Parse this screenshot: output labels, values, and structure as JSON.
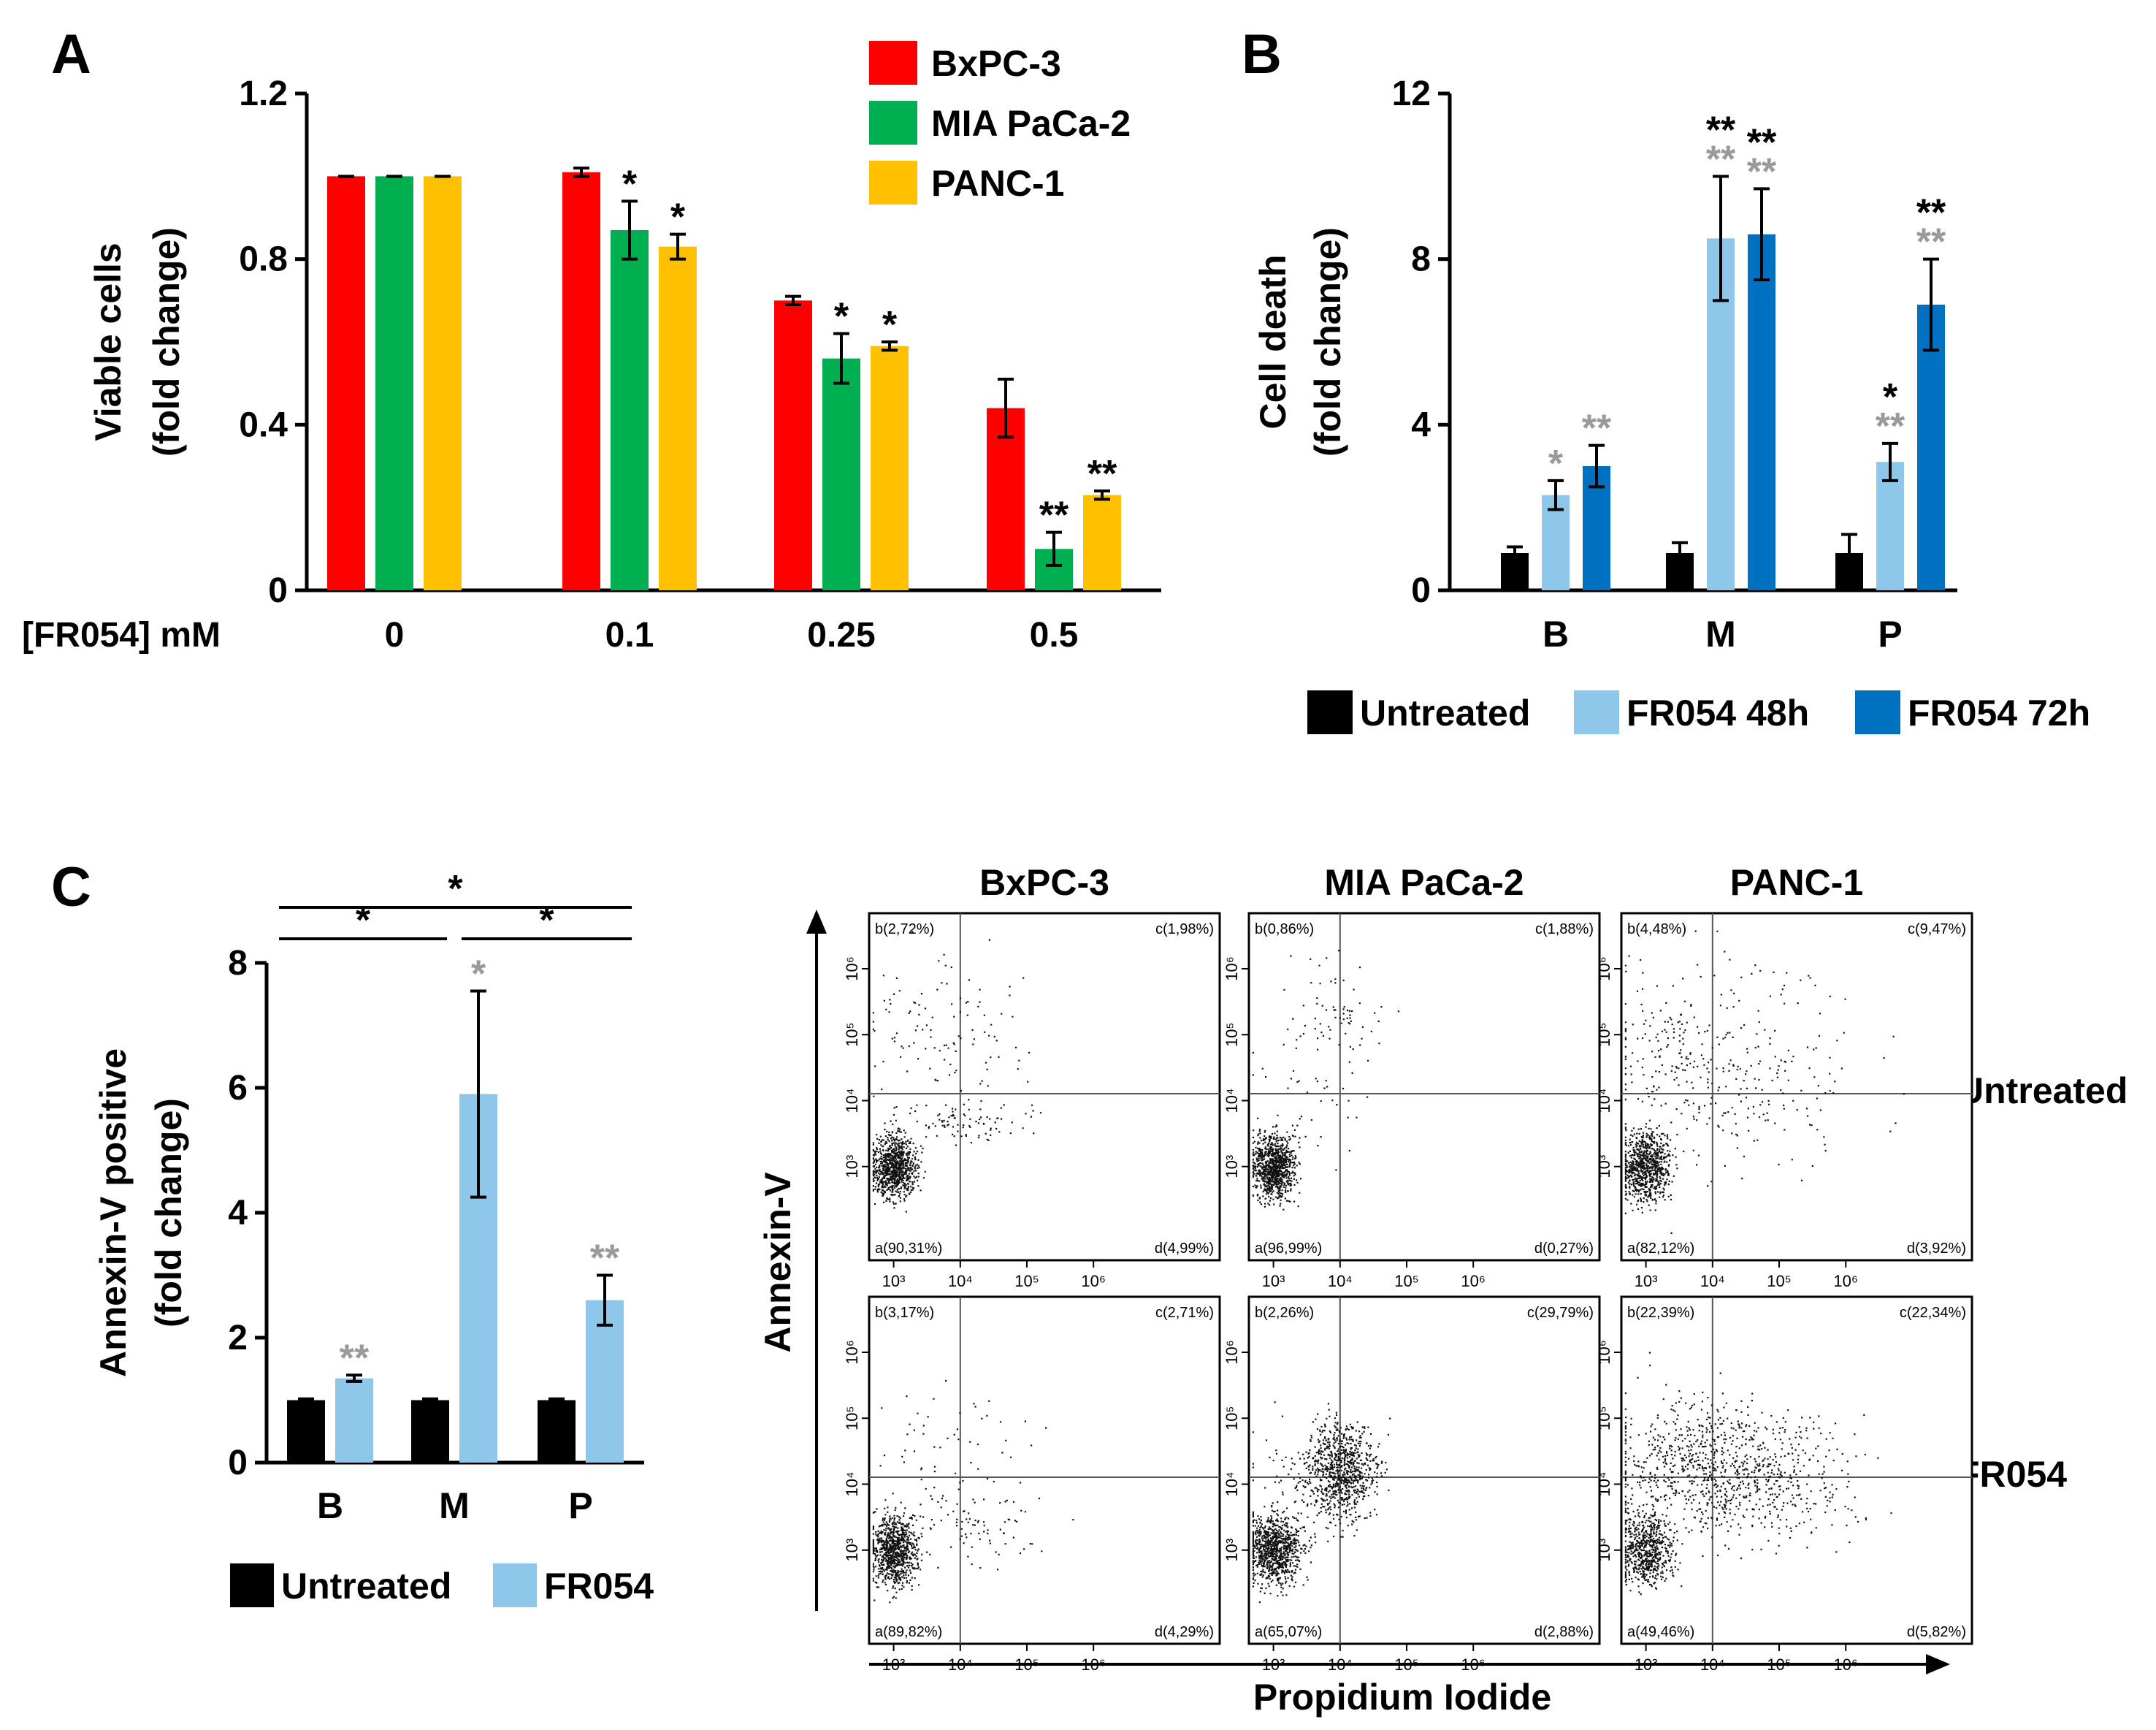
{
  "panels": {
    "A": {
      "label": "A"
    },
    "B": {
      "label": "B"
    },
    "C": {
      "label": "C"
    }
  },
  "chart_data": [
    {
      "id": "A",
      "type": "bar",
      "xlabel": "[FR054] mM",
      "ylabel_line1": "Viable cells",
      "ylabel_line2": "(fold change)",
      "ylim": [
        0,
        1.2
      ],
      "yticks": [
        "0",
        "0.4",
        "0.8",
        "1.2"
      ],
      "categories": [
        "0",
        "0.1",
        "0.25",
        "0.5"
      ],
      "legend_position": "top-right",
      "series": [
        {
          "name": "BxPC-3",
          "color": "#ff0000",
          "values": [
            1.0,
            1.01,
            0.7,
            0.44
          ],
          "errors": [
            0.0,
            0.01,
            0.01,
            0.07
          ],
          "stars": [
            "",
            "",
            "",
            ""
          ]
        },
        {
          "name": "MIA PaCa-2",
          "color": "#00b050",
          "values": [
            1.0,
            0.87,
            0.56,
            0.1
          ],
          "errors": [
            0.0,
            0.07,
            0.06,
            0.04
          ],
          "stars": [
            "",
            "*",
            "*",
            "**"
          ]
        },
        {
          "name": "PANC-1",
          "color": "#ffc000",
          "values": [
            1.0,
            0.83,
            0.59,
            0.23
          ],
          "errors": [
            0.0,
            0.03,
            0.01,
            0.01
          ],
          "stars": [
            "",
            "*",
            "*",
            "**"
          ]
        }
      ]
    },
    {
      "id": "B",
      "type": "bar",
      "ylabel_line1": "Cell death",
      "ylabel_line2": "(fold change)",
      "ylim": [
        0,
        12
      ],
      "yticks": [
        "0",
        "4",
        "8",
        "12"
      ],
      "categories": [
        "B",
        "M",
        "P"
      ],
      "legend_position": "bottom",
      "series": [
        {
          "name": "Untreated",
          "color": "#000000",
          "values": [
            0.9,
            0.9,
            0.9
          ],
          "errors": [
            0.15,
            0.25,
            0.45
          ],
          "stars_black": [
            "",
            "",
            ""
          ],
          "stars_gray": [
            "",
            "",
            ""
          ]
        },
        {
          "name": "FR054 48h",
          "color": "#8ec7ea",
          "values": [
            2.3,
            8.5,
            3.1
          ],
          "errors": [
            0.35,
            1.5,
            0.45
          ],
          "stars_black": [
            "",
            "**",
            "*"
          ],
          "stars_gray": [
            "*",
            "**",
            "**"
          ]
        },
        {
          "name": "FR054 72h",
          "color": "#0070c0",
          "values": [
            3.0,
            8.6,
            6.9
          ],
          "errors": [
            0.5,
            1.1,
            1.1
          ],
          "stars_black": [
            "",
            "**",
            "**"
          ],
          "stars_gray": [
            "**",
            "**",
            "**"
          ]
        }
      ]
    },
    {
      "id": "C",
      "type": "bar",
      "ylabel_line1": "Annexin-V positive",
      "ylabel_line2": "(fold change)",
      "ylim": [
        0,
        8
      ],
      "yticks": [
        "0",
        "2",
        "4",
        "6",
        "8"
      ],
      "categories": [
        "B",
        "M",
        "P"
      ],
      "legend_position": "bottom",
      "series": [
        {
          "name": "Untreated",
          "color": "#000000",
          "values": [
            1.0,
            1.0,
            1.0
          ],
          "errors": [
            0.02,
            0.02,
            0.02
          ],
          "stars": [
            "",
            "",
            ""
          ]
        },
        {
          "name": "FR054",
          "color": "#8ec7ea",
          "values": [
            1.35,
            5.9,
            2.6
          ],
          "errors": [
            0.05,
            1.65,
            0.4
          ],
          "stars": [
            "**",
            "*",
            "**"
          ]
        }
      ],
      "brackets": [
        {
          "from": "B",
          "to": "M",
          "label": "*"
        },
        {
          "from": "M",
          "to": "P",
          "label": "*"
        },
        {
          "from": "B",
          "to": "P",
          "label": "*"
        }
      ]
    },
    {
      "id": "C-flow",
      "type": "scatter",
      "xlabel": "Propidium Iodide",
      "ylabel": "Annexin-V",
      "columns": [
        "BxPC-3",
        "MIA PaCa-2",
        "PANC-1"
      ],
      "rows": [
        "Untreated",
        "FR054"
      ],
      "x_ticks": [
        "10³",
        "10⁴",
        "10⁵",
        "10⁶"
      ],
      "y_ticks": [
        "10³",
        "10⁴",
        "10⁵",
        "10⁶"
      ],
      "quadrants": [
        [
          "b(2,72%)",
          "c(1,98%)",
          "a(90,31%)",
          "d(4,99%)"
        ],
        [
          "b(0,86%)",
          "c(1,88%)",
          "a(96,99%)",
          "d(0,27%)"
        ],
        [
          "b(4,48%)",
          "c(9,47%)",
          "a(82,12%)",
          "d(3,92%)"
        ],
        [
          "b(3,17%)",
          "c(2,71%)",
          "a(89,82%)",
          "d(4,29%)"
        ],
        [
          "b(2,26%)",
          "c(29,79%)",
          "a(65,07%)",
          "d(2,88%)"
        ],
        [
          "b(22,39%)",
          "c(22,34%)",
          "a(49,46%)",
          "d(5,82%)"
        ]
      ]
    }
  ]
}
